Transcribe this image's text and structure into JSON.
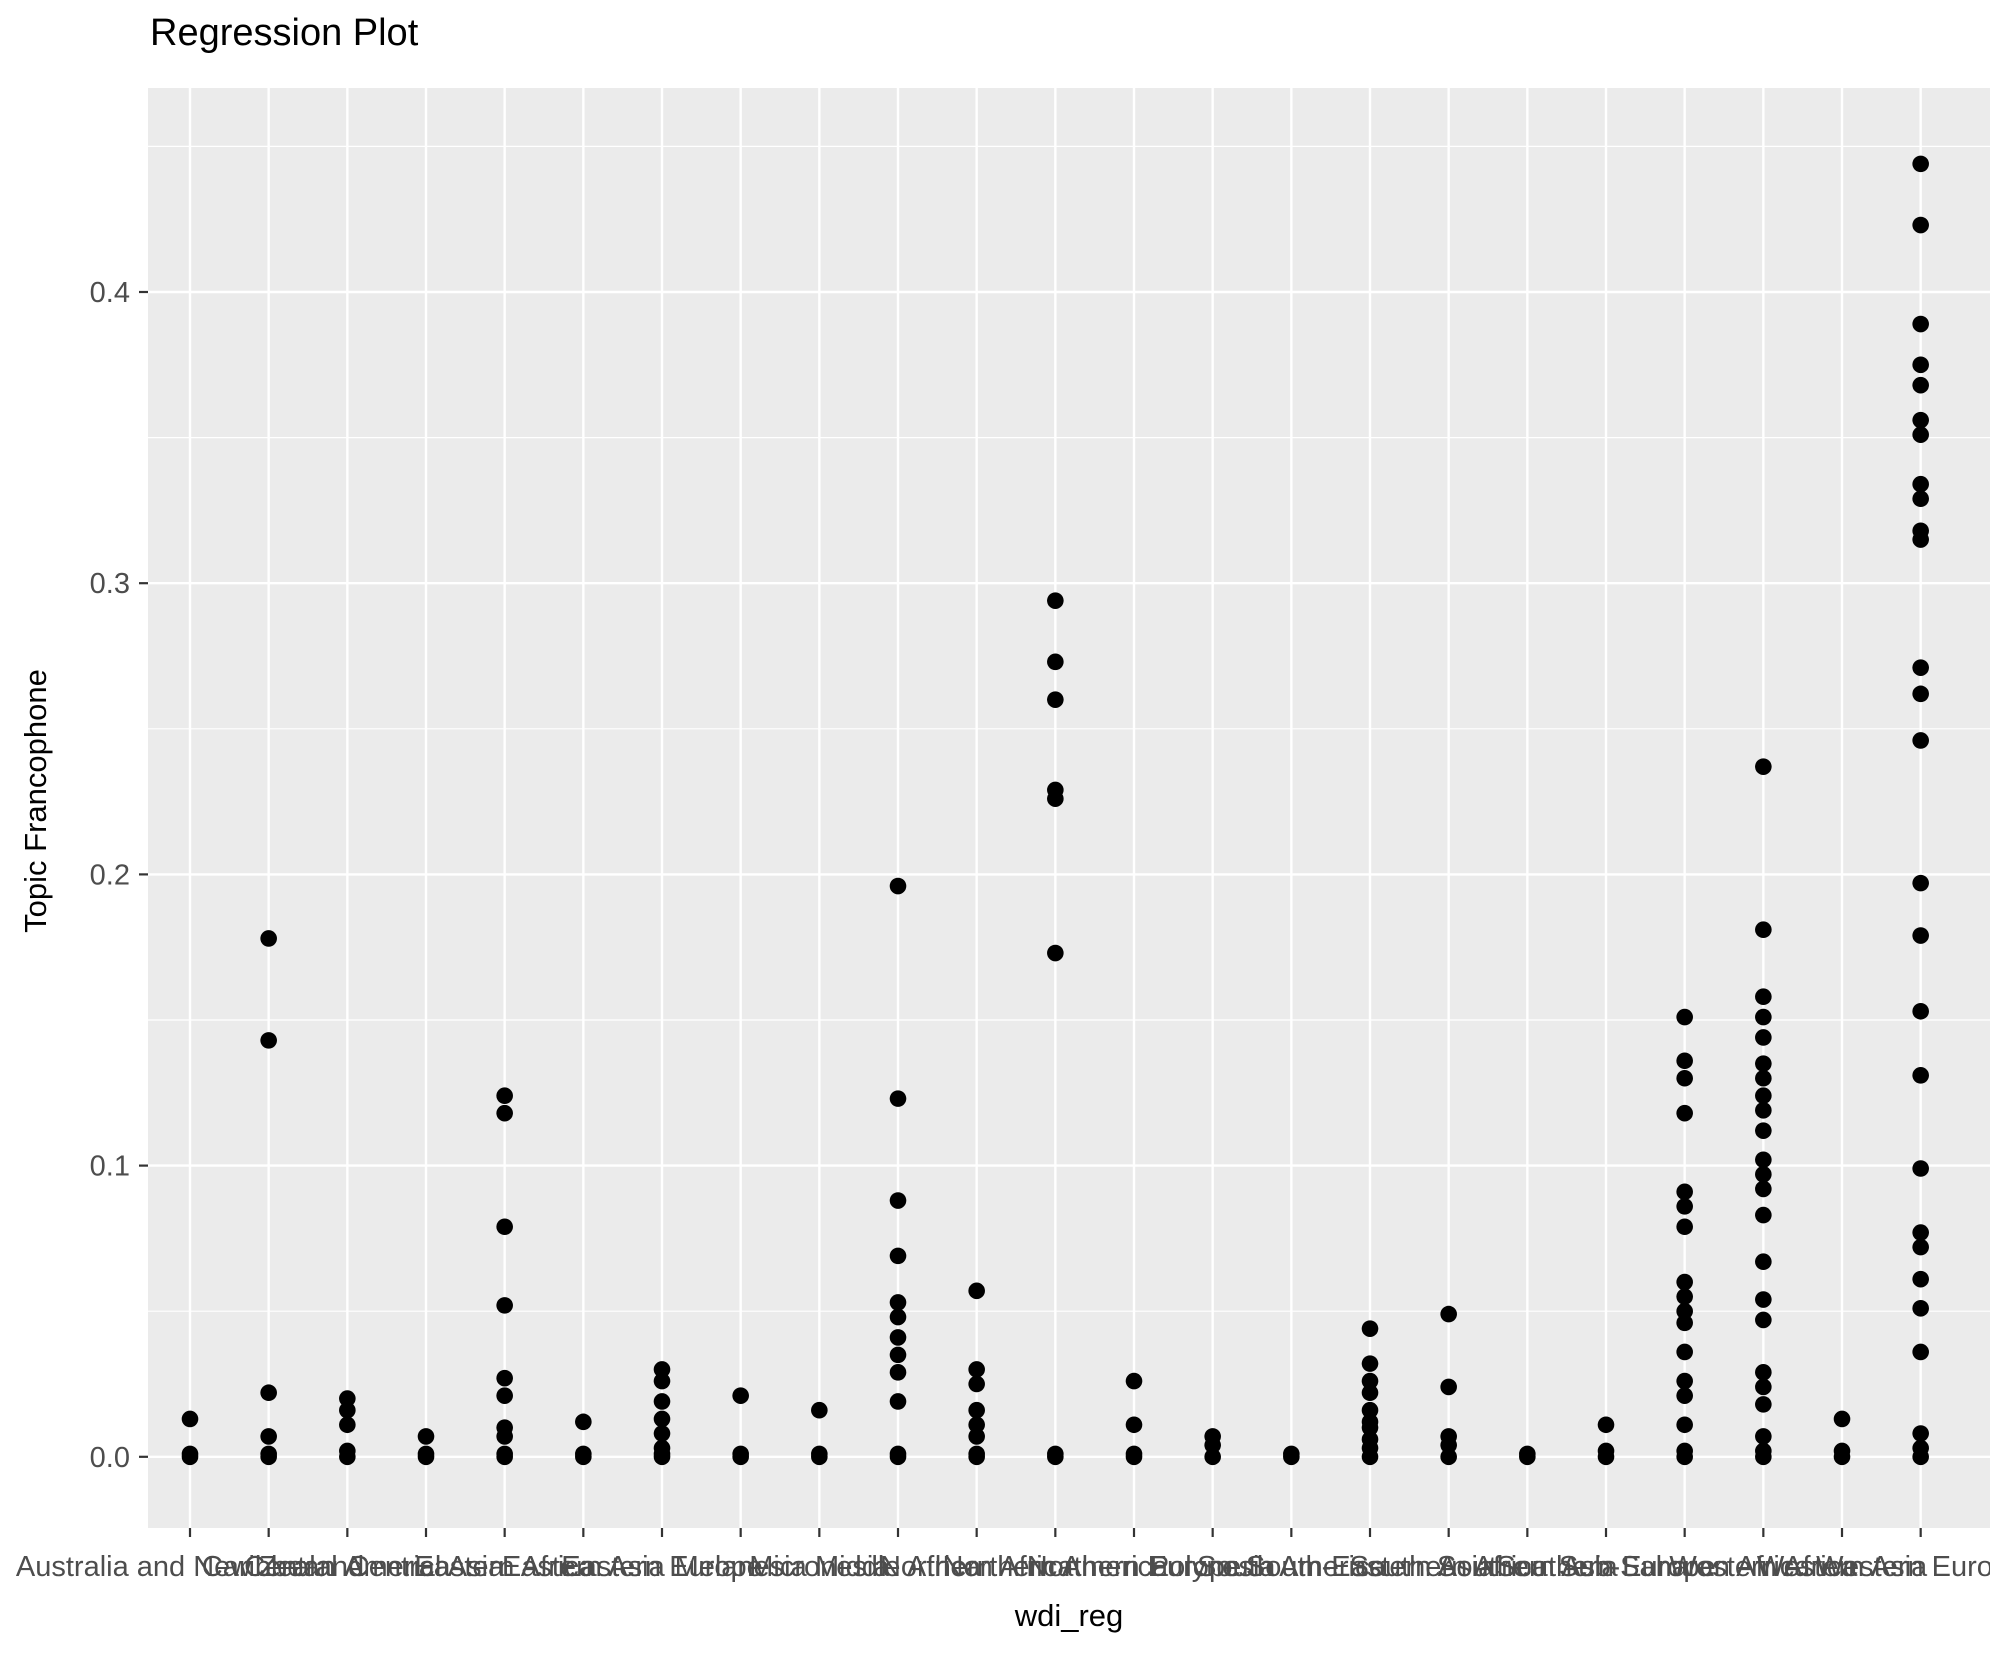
{
  "chart": {
    "title": "Regression Plot",
    "xlabel": "wdi_reg",
    "ylabel": "Topic Francophone"
  },
  "chart_data": {
    "type": "scatter",
    "title": "Regression Plot",
    "xlabel": "wdi_reg",
    "ylabel": "Topic Francophone",
    "legend": "none",
    "grid": {
      "major": true,
      "minor": true,
      "minor_y_step": 0.05,
      "major_y_step": 0.1
    },
    "ylim": [
      -0.024,
      0.47
    ],
    "y_ticks": [
      0.0,
      0.1,
      0.2,
      0.3,
      0.4
    ],
    "y_tick_labels": [
      "0.0",
      "0.1",
      "0.2",
      "0.3",
      "0.4"
    ],
    "point_color": "#000000",
    "panel_bg": "#EBEBEB",
    "grid_color": "#FFFFFF",
    "tick_text_color": "#4D4D4D",
    "categories": [
      "Australia and New Zealand",
      "Caribbean",
      "Central America",
      "Central Asia",
      "Eastern Africa",
      "Eastern Asia",
      "Eastern Europe",
      "Melanesia",
      "Micronesia",
      "Middle Africa",
      "Northern Africa",
      "Northern America",
      "Northern Europe",
      "Polynesia",
      "South America",
      "South-Eastern Asia",
      "Southern Africa",
      "Southern Asia",
      "Southern Europe",
      "Sub-Saharan Africa",
      "Western Africa",
      "Western Asia",
      "Western Europe"
    ],
    "values_by_category": [
      [
        0.013,
        0.001,
        0.0
      ],
      [
        0.178,
        0.143,
        0.022,
        0.007,
        0.001,
        0.0
      ],
      [
        0.02,
        0.016,
        0.011,
        0.002,
        0.0
      ],
      [
        0.007,
        0.001,
        0.0
      ],
      [
        0.124,
        0.118,
        0.079,
        0.052,
        0.027,
        0.021,
        0.01,
        0.007,
        0.001,
        0.0
      ],
      [
        0.012,
        0.001,
        0.0
      ],
      [
        0.03,
        0.026,
        0.019,
        0.013,
        0.008,
        0.003,
        0.001,
        0.0
      ],
      [
        0.021,
        0.001,
        0.0
      ],
      [
        0.016,
        0.001,
        0.0
      ],
      [
        0.196,
        0.123,
        0.088,
        0.069,
        0.053,
        0.048,
        0.041,
        0.035,
        0.029,
        0.019,
        0.001,
        0.0
      ],
      [
        0.057,
        0.03,
        0.025,
        0.016,
        0.011,
        0.007,
        0.001,
        0.0
      ],
      [
        0.294,
        0.273,
        0.26,
        0.229,
        0.226,
        0.173,
        0.001,
        0.0
      ],
      [
        0.026,
        0.011,
        0.001,
        0.0
      ],
      [
        0.007,
        0.004,
        0.0
      ],
      [
        0.001,
        0.0
      ],
      [
        0.044,
        0.032,
        0.026,
        0.022,
        0.016,
        0.012,
        0.01,
        0.006,
        0.003,
        0.0
      ],
      [
        0.049,
        0.024,
        0.007,
        0.004,
        0.0
      ],
      [
        0.001,
        0.0
      ],
      [
        0.011,
        0.002,
        0.0
      ],
      [
        0.151,
        0.136,
        0.13,
        0.118,
        0.091,
        0.086,
        0.079,
        0.06,
        0.055,
        0.05,
        0.046,
        0.036,
        0.026,
        0.021,
        0.011,
        0.002,
        0.0
      ],
      [
        0.237,
        0.181,
        0.158,
        0.151,
        0.144,
        0.135,
        0.13,
        0.124,
        0.119,
        0.112,
        0.102,
        0.097,
        0.092,
        0.083,
        0.067,
        0.054,
        0.047,
        0.029,
        0.024,
        0.018,
        0.007,
        0.002,
        0.0
      ],
      [
        0.013,
        0.002,
        0.0
      ],
      [
        0.444,
        0.423,
        0.389,
        0.375,
        0.368,
        0.356,
        0.351,
        0.334,
        0.329,
        0.318,
        0.315,
        0.271,
        0.262,
        0.246,
        0.197,
        0.179,
        0.153,
        0.131,
        0.099,
        0.077,
        0.072,
        0.061,
        0.051,
        0.036,
        0.008,
        0.003,
        0.0
      ]
    ]
  }
}
